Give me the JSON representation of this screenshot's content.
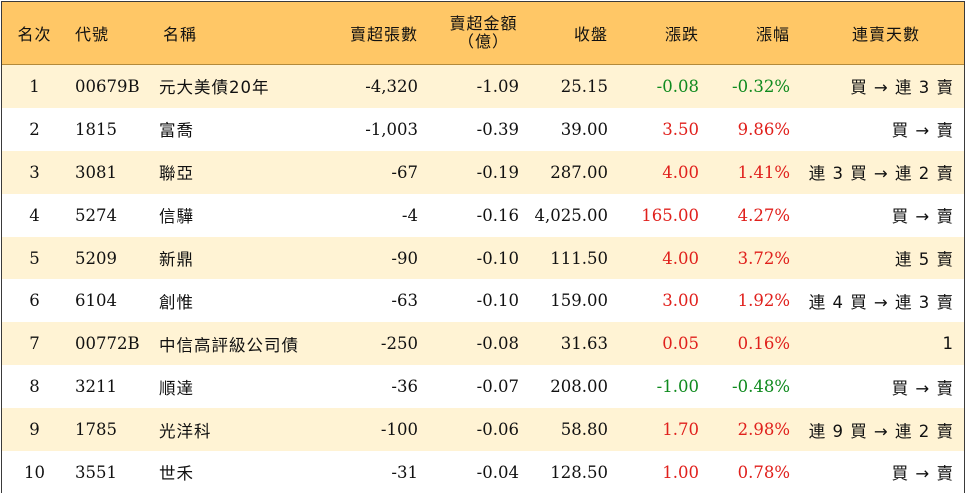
{
  "colors": {
    "header_bg": "#ffc766",
    "row_alt_bg": "#fff3d4",
    "up": "#e0201c",
    "down": "#0f8a1e"
  },
  "headers": {
    "rank": "名次",
    "code": "代號",
    "name": "名稱",
    "net_sell_lots": "賣超張數",
    "net_sell_amount": "賣超金額",
    "net_sell_amount_unit": "（億）",
    "close": "收盤",
    "change": "漲跌",
    "change_pct": "漲幅",
    "streak": "連賣天數"
  },
  "rows": [
    {
      "rank": "1",
      "code": "00679B",
      "name": "元大美債20年",
      "lots": "-4,320",
      "amount": "-1.09",
      "close": "25.15",
      "change": "-0.08",
      "pct": "-0.32%",
      "dir": "down",
      "streak": "買 → 連 3 賣"
    },
    {
      "rank": "2",
      "code": "1815",
      "name": "富喬",
      "lots": "-1,003",
      "amount": "-0.39",
      "close": "39.00",
      "change": "3.50",
      "pct": "9.86%",
      "dir": "up",
      "streak": "買 → 賣"
    },
    {
      "rank": "3",
      "code": "3081",
      "name": "聯亞",
      "lots": "-67",
      "amount": "-0.19",
      "close": "287.00",
      "change": "4.00",
      "pct": "1.41%",
      "dir": "up",
      "streak": "連 3 買 → 連 2 賣"
    },
    {
      "rank": "4",
      "code": "5274",
      "name": "信驊",
      "lots": "-4",
      "amount": "-0.16",
      "close": "4,025.00",
      "change": "165.00",
      "pct": "4.27%",
      "dir": "up",
      "streak": "買 → 賣"
    },
    {
      "rank": "5",
      "code": "5209",
      "name": "新鼎",
      "lots": "-90",
      "amount": "-0.10",
      "close": "111.50",
      "change": "4.00",
      "pct": "3.72%",
      "dir": "up",
      "streak": "連 5 賣"
    },
    {
      "rank": "6",
      "code": "6104",
      "name": "創惟",
      "lots": "-63",
      "amount": "-0.10",
      "close": "159.00",
      "change": "3.00",
      "pct": "1.92%",
      "dir": "up",
      "streak": "連 4 買 → 連 3 賣"
    },
    {
      "rank": "7",
      "code": "00772B",
      "name": "中信高評級公司債",
      "lots": "-250",
      "amount": "-0.08",
      "close": "31.63",
      "change": "0.05",
      "pct": "0.16%",
      "dir": "up",
      "streak": "1"
    },
    {
      "rank": "8",
      "code": "3211",
      "name": "順達",
      "lots": "-36",
      "amount": "-0.07",
      "close": "208.00",
      "change": "-1.00",
      "pct": "-0.48%",
      "dir": "down",
      "streak": "買 → 賣"
    },
    {
      "rank": "9",
      "code": "1785",
      "name": "光洋科",
      "lots": "-100",
      "amount": "-0.06",
      "close": "58.80",
      "change": "1.70",
      "pct": "2.98%",
      "dir": "up",
      "streak": "連 9 買 → 連 2 賣"
    },
    {
      "rank": "10",
      "code": "3551",
      "name": "世禾",
      "lots": "-31",
      "amount": "-0.04",
      "close": "128.50",
      "change": "1.00",
      "pct": "0.78%",
      "dir": "up",
      "streak": "買 → 賣"
    }
  ]
}
